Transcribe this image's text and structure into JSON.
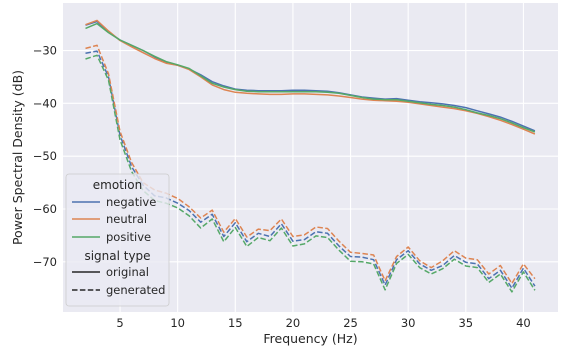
{
  "chart_data": {
    "type": "line",
    "xlabel": "Frequency (Hz)",
    "ylabel": "Power Spectral Density (dB)",
    "xlim": [
      0.05,
      43.0
    ],
    "ylim": [
      -79.5,
      -21.0
    ],
    "xticks": [
      5,
      10,
      15,
      20,
      25,
      30,
      35,
      40
    ],
    "yticks": [
      -70,
      -60,
      -50,
      -40,
      -30
    ],
    "grid": true,
    "legend_placement": "lower-left",
    "x": [
      2,
      3,
      4,
      5,
      6,
      7,
      8,
      9,
      10,
      11,
      12,
      13,
      14,
      15,
      16,
      17,
      18,
      19,
      20,
      21,
      22,
      23,
      24,
      25,
      26,
      27,
      28,
      29,
      30,
      31,
      32,
      33,
      34,
      35,
      36,
      37,
      38,
      39,
      40,
      41
    ],
    "legend": {
      "emotion_title": "emotion",
      "signal_title": "signal type",
      "emotion_entries": [
        {
          "label": "negative",
          "color": "#4c72b0"
        },
        {
          "label": "neutral",
          "color": "#dd8452"
        },
        {
          "label": "positive",
          "color": "#55a868"
        }
      ],
      "signal_entries": [
        {
          "label": "original",
          "style": "solid"
        },
        {
          "label": "generated",
          "style": "dashed"
        }
      ]
    },
    "series": [
      {
        "name": "negative",
        "signal": "original",
        "color": "#4c72b0",
        "style": "solid",
        "values": [
          -25.2,
          -24.5,
          -26.5,
          -28.0,
          -29.0,
          -30.0,
          -31.2,
          -32.3,
          -32.8,
          -33.5,
          -34.6,
          -35.9,
          -36.7,
          -37.3,
          -37.5,
          -37.6,
          -37.6,
          -37.6,
          -37.5,
          -37.5,
          -37.6,
          -37.7,
          -38.0,
          -38.4,
          -38.8,
          -39.0,
          -39.2,
          -39.1,
          -39.4,
          -39.7,
          -39.9,
          -40.1,
          -40.4,
          -40.8,
          -41.4,
          -42.0,
          -42.6,
          -43.4,
          -44.3,
          -45.2
        ]
      },
      {
        "name": "neutral",
        "signal": "original",
        "color": "#dd8452",
        "style": "solid",
        "values": [
          -25.1,
          -24.3,
          -26.3,
          -28.1,
          -29.3,
          -30.4,
          -31.5,
          -32.4,
          -32.8,
          -33.6,
          -35.0,
          -36.5,
          -37.4,
          -37.9,
          -38.1,
          -38.2,
          -38.3,
          -38.3,
          -38.2,
          -38.2,
          -38.3,
          -38.4,
          -38.6,
          -38.9,
          -39.2,
          -39.4,
          -39.5,
          -39.6,
          -39.8,
          -40.1,
          -40.4,
          -40.7,
          -41.0,
          -41.4,
          -41.9,
          -42.5,
          -43.2,
          -44.0,
          -44.9,
          -45.8
        ]
      },
      {
        "name": "positive",
        "signal": "original",
        "color": "#55a868",
        "style": "solid",
        "values": [
          -25.8,
          -24.9,
          -26.6,
          -28.0,
          -29.0,
          -30.0,
          -31.1,
          -32.1,
          -32.7,
          -33.4,
          -34.8,
          -36.2,
          -36.9,
          -37.4,
          -37.7,
          -37.8,
          -37.8,
          -37.8,
          -37.8,
          -37.8,
          -37.8,
          -37.9,
          -38.1,
          -38.5,
          -38.9,
          -39.2,
          -39.3,
          -39.3,
          -39.6,
          -39.9,
          -40.2,
          -40.4,
          -40.7,
          -41.2,
          -41.8,
          -42.3,
          -42.9,
          -43.7,
          -44.6,
          -45.4
        ]
      },
      {
        "name": "negative",
        "signal": "generated",
        "color": "#4c72b0",
        "style": "dashed",
        "values": [
          -30.5,
          -30.1,
          -35.0,
          -46.0,
          -52.0,
          -55.5,
          -57.5,
          -57.9,
          -58.9,
          -60.3,
          -62.5,
          -61.0,
          -65.2,
          -62.6,
          -66.2,
          -64.6,
          -65.2,
          -62.8,
          -66.1,
          -65.8,
          -64.3,
          -64.6,
          -67.0,
          -69.0,
          -69.1,
          -69.6,
          -74.4,
          -69.6,
          -67.9,
          -70.4,
          -71.6,
          -70.7,
          -68.8,
          -70.1,
          -70.4,
          -73.2,
          -71.6,
          -75.0,
          -71.2,
          -74.6
        ]
      },
      {
        "name": "neutral",
        "signal": "generated",
        "color": "#dd8452",
        "style": "dashed",
        "values": [
          -29.6,
          -29.0,
          -34.4,
          -45.3,
          -51.2,
          -55.0,
          -56.4,
          -57.0,
          -58.0,
          -59.6,
          -61.7,
          -60.2,
          -64.4,
          -61.8,
          -65.3,
          -63.8,
          -64.1,
          -61.9,
          -65.2,
          -64.9,
          -63.4,
          -63.7,
          -66.1,
          -68.2,
          -68.4,
          -68.7,
          -73.6,
          -69.0,
          -67.2,
          -69.8,
          -71.1,
          -69.8,
          -67.9,
          -69.3,
          -69.6,
          -72.3,
          -70.7,
          -74.1,
          -70.4,
          -73.2
        ]
      },
      {
        "name": "positive",
        "signal": "generated",
        "color": "#55a868",
        "style": "dashed",
        "values": [
          -31.6,
          -30.9,
          -35.6,
          -46.9,
          -52.9,
          -56.5,
          -58.4,
          -58.9,
          -59.8,
          -61.3,
          -63.6,
          -61.9,
          -66.2,
          -63.5,
          -67.1,
          -65.4,
          -66.0,
          -63.6,
          -67.0,
          -66.6,
          -65.1,
          -65.4,
          -67.8,
          -69.9,
          -70.0,
          -70.4,
          -75.3,
          -70.3,
          -68.6,
          -71.1,
          -72.3,
          -71.3,
          -69.5,
          -70.8,
          -71.1,
          -73.9,
          -72.3,
          -75.7,
          -71.9,
          -75.4
        ]
      }
    ]
  }
}
